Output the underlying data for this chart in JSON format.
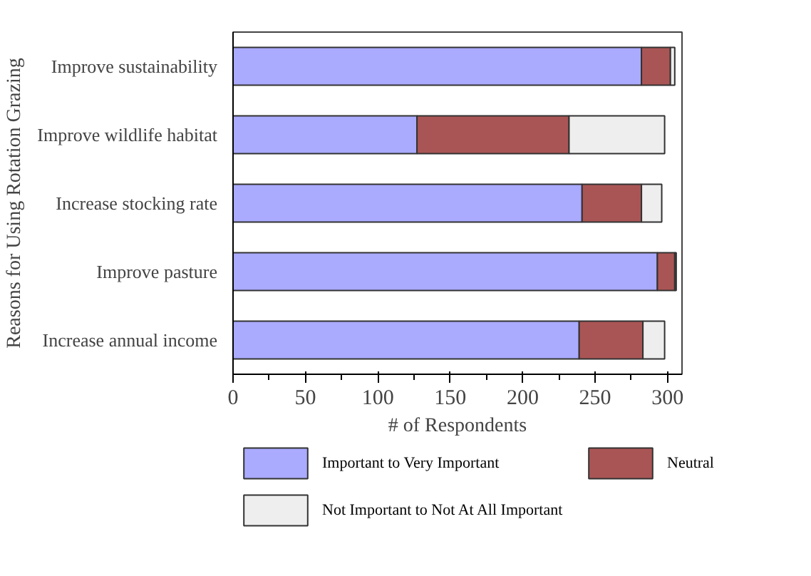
{
  "chart_data": {
    "type": "bar",
    "orientation": "horizontal",
    "stacked": true,
    "ylabel": "Reasons for Using Rotation Grazing",
    "xlabel": "# of Respondents",
    "categories": [
      "Improve sustainability",
      "Improve wildlife habitat",
      "Increase stocking rate",
      "Improve pasture",
      "Increase annual income"
    ],
    "series": [
      {
        "name": "Important to Very Important",
        "color": "#aaaaff",
        "values": [
          282,
          127,
          241,
          293,
          239
        ]
      },
      {
        "name": "Neutral",
        "color": "#aa5555",
        "values": [
          20,
          105,
          41,
          12,
          44
        ]
      },
      {
        "name": "Not Important to Not At All Important",
        "color": "#eeeeee",
        "values": [
          3,
          66,
          14,
          1,
          15
        ]
      }
    ],
    "xlim": [
      0,
      310
    ],
    "xticks": [
      0,
      50,
      100,
      150,
      200,
      250,
      300
    ],
    "grid": false,
    "legend": "bottom"
  }
}
